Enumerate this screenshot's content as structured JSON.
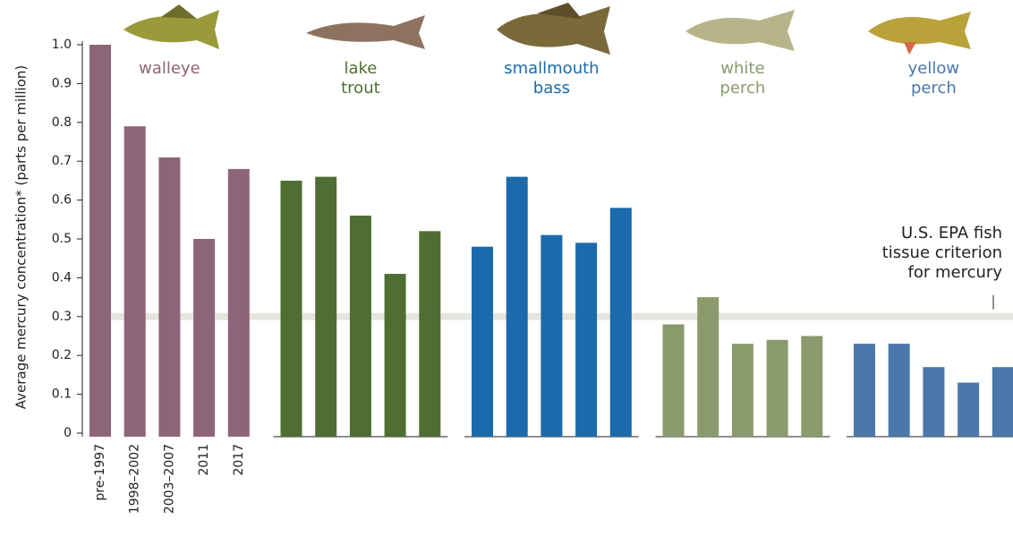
{
  "chart_data": {
    "type": "bar",
    "y_label": "Average mercury concentration* (parts per million)",
    "categories": [
      "pre-1997",
      "1998–2002",
      "2003–2007",
      "2011",
      "2017"
    ],
    "series": [
      {
        "name": "walleye",
        "color": "#8e6478",
        "values": [
          1.0,
          0.79,
          0.71,
          0.5,
          0.68
        ]
      },
      {
        "name": "lake trout",
        "color": "#4f6e33",
        "values": [
          0.65,
          0.66,
          0.56,
          0.41,
          0.52
        ]
      },
      {
        "name": "smallmouth bass",
        "color": "#1b6aab",
        "values": [
          0.48,
          0.66,
          0.51,
          0.49,
          0.58
        ]
      },
      {
        "name": "white perch",
        "color": "#8a9a6c",
        "values": [
          0.28,
          0.35,
          0.23,
          0.24,
          0.25
        ]
      },
      {
        "name": "yellow perch",
        "color": "#4a78aa",
        "values": [
          0.23,
          0.23,
          0.17,
          0.13,
          0.17
        ]
      }
    ],
    "reference_line": {
      "value": 0.3,
      "color": "#e6e6df",
      "annotation": [
        "U.S. EPA fish",
        "tissue criterion",
        "for mercury"
      ]
    },
    "ylim": [
      0,
      1.0
    ],
    "yticks": [
      0,
      0.1,
      0.2,
      0.3,
      0.4,
      0.5,
      0.6,
      0.7,
      0.8,
      0.9,
      {
        "value": 1.0,
        "label": "1.0"
      }
    ]
  }
}
